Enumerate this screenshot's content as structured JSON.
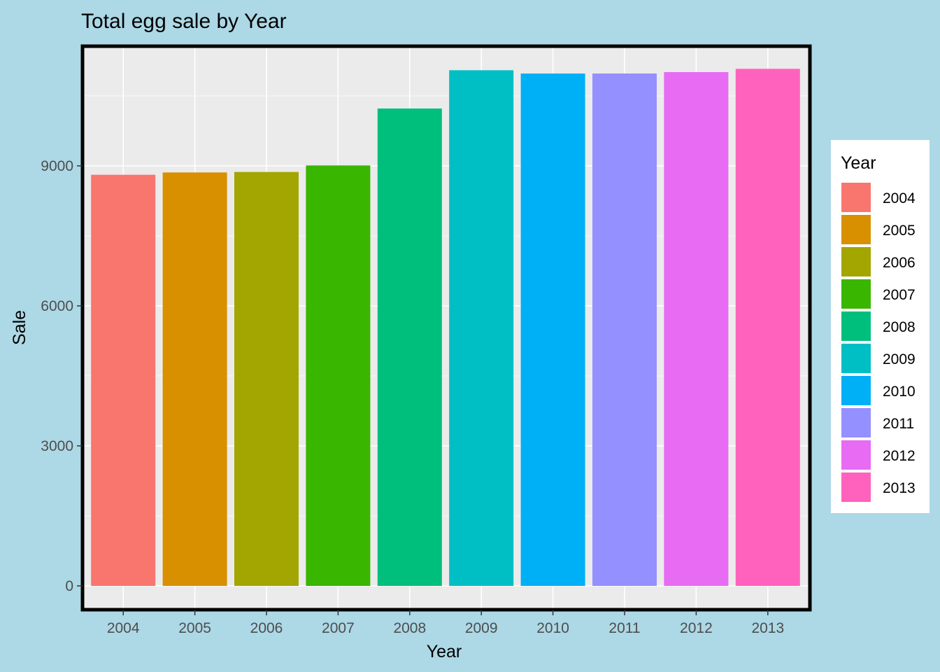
{
  "chart_data": {
    "type": "bar",
    "title": "Total egg sale by Year",
    "xlabel": "Year",
    "ylabel": "Sale",
    "categories": [
      "2004",
      "2005",
      "2006",
      "2007",
      "2008",
      "2009",
      "2010",
      "2011",
      "2012",
      "2013"
    ],
    "values": [
      8810,
      8860,
      8870,
      9010,
      10230,
      11050,
      10980,
      10980,
      11010,
      11080
    ],
    "ylim": [
      0,
      11500
    ],
    "yticks": [
      0,
      3000,
      6000,
      9000
    ],
    "ytick_labels": [
      "0",
      "3000",
      "6000",
      "9000"
    ],
    "grid": true,
    "legend": {
      "title": "Year",
      "placement": "right",
      "labels": [
        "2004",
        "2005",
        "2006",
        "2007",
        "2008",
        "2009",
        "2010",
        "2011",
        "2012",
        "2013"
      ]
    },
    "colors": [
      "#F8766D",
      "#D89000",
      "#A3A500",
      "#39B600",
      "#00BF7D",
      "#00BFC4",
      "#00B0F6",
      "#9590FF",
      "#E76BF3",
      "#FF62BC"
    ],
    "panel_background": "#ebebeb",
    "page_background": "#add8e6"
  }
}
